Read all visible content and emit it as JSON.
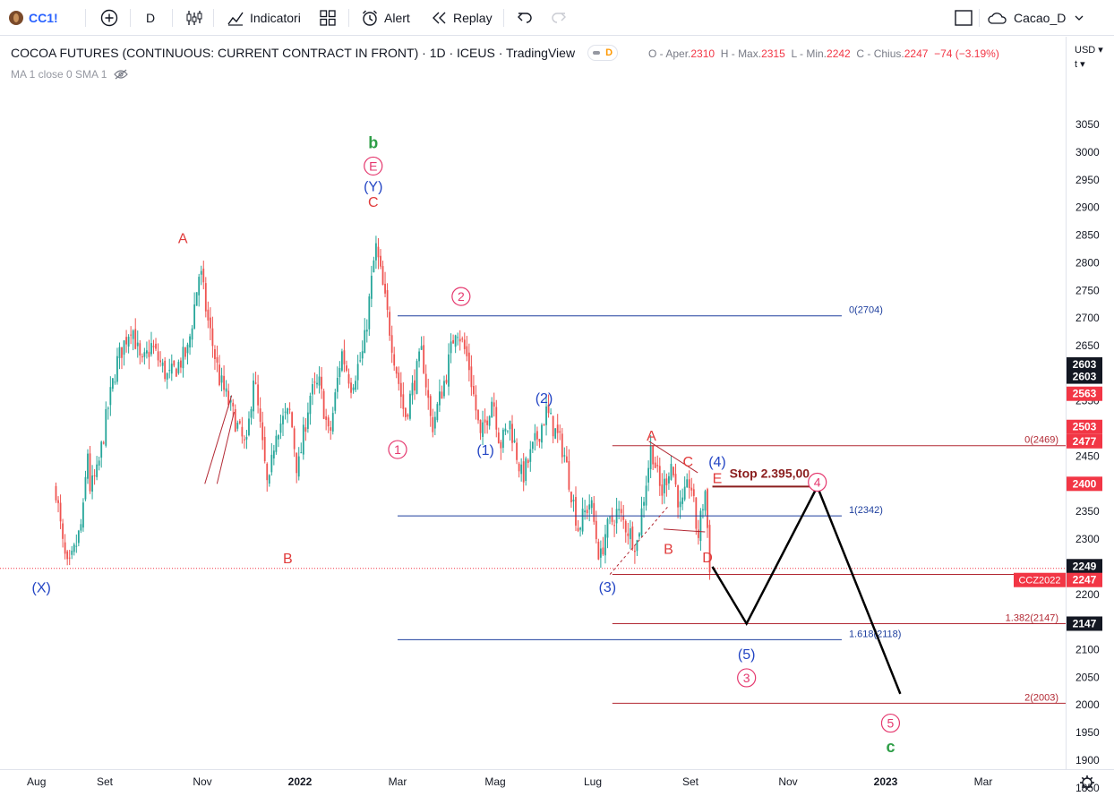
{
  "toolbar": {
    "symbol": "CC1!",
    "interval": "D",
    "indicators_label": "Indicatori",
    "alert_label": "Alert",
    "replay_label": "Replay",
    "layout_name": "Cacao_D"
  },
  "legend": {
    "title": "COCOA FUTURES (CONTINUOUS: CURRENT CONTRACT IN FRONT) · 1D · ICEUS · TradingView",
    "badge": "D",
    "ohlc": {
      "o_label": "O - Aper.",
      "o_val": "2310",
      "h_label": "H - Max.",
      "h_val": "2315",
      "l_label": "L - Min.",
      "l_val": "2242",
      "c_label": "C - Chius.",
      "c_val": "2247",
      "change": "−74 (−3.19%)"
    },
    "ma": "MA 1 close 0 SMA 1"
  },
  "price_axis": {
    "currency": "USD",
    "unit": "t",
    "ticks": [
      3050,
      3000,
      2950,
      2900,
      2850,
      2800,
      2750,
      2700,
      2650,
      2600,
      2550,
      2500,
      2450,
      2400,
      2350,
      2300,
      2250,
      2200,
      2150,
      2100,
      2050,
      2000,
      1950,
      1900,
      1850
    ],
    "labels": [
      {
        "text": "2603",
        "value": 2616,
        "bg": "#131722"
      },
      {
        "text": "2603",
        "value": 2594,
        "bg": "#131722"
      },
      {
        "text": "2563",
        "value": 2563,
        "bg": "#f23645"
      },
      {
        "text": "2503",
        "value": 2503,
        "bg": "#f23645"
      },
      {
        "text": "2477",
        "value": 2477,
        "bg": "#f23645"
      },
      {
        "text": "2400",
        "value": 2400,
        "bg": "#f23645"
      },
      {
        "text": "2249",
        "value": 2251,
        "bg": "#131722"
      },
      {
        "text": "2247",
        "value": 2226,
        "bg": "#f23645",
        "tag": "CCZ2022"
      },
      {
        "text": "2147",
        "value": 2147,
        "bg": "#131722"
      }
    ]
  },
  "time_axis": {
    "ticks": [
      {
        "label": "Aug",
        "t": -0.4,
        "bold": false
      },
      {
        "label": "Set",
        "t": 1.0,
        "bold": false
      },
      {
        "label": "Nov",
        "t": 3.0,
        "bold": false
      },
      {
        "label": "2022",
        "t": 5.0,
        "bold": true
      },
      {
        "label": "Mar",
        "t": 7.0,
        "bold": false
      },
      {
        "label": "Mag",
        "t": 9.0,
        "bold": false
      },
      {
        "label": "Lug",
        "t": 11.0,
        "bold": false
      },
      {
        "label": "Set",
        "t": 13.0,
        "bold": false
      },
      {
        "label": "Nov",
        "t": 15.0,
        "bold": false
      },
      {
        "label": "2023",
        "t": 17.0,
        "bold": true
      },
      {
        "label": "Mar",
        "t": 19.0,
        "bold": false
      }
    ]
  },
  "chart_data": {
    "type": "candlestick",
    "title": "COCOA FUTURES (CONTINUOUS: CURRENT CONTRACT IN FRONT)",
    "interval": "1D",
    "exchange": "ICEUS",
    "ylim": [
      1815,
      3115
    ],
    "x_unit": "months from Jul 2021",
    "price_path": [
      [
        0.0,
        2390
      ],
      [
        0.15,
        2280
      ],
      [
        0.25,
        2240
      ],
      [
        0.45,
        2300
      ],
      [
        0.55,
        2340
      ],
      [
        0.65,
        2460
      ],
      [
        0.7,
        2390
      ],
      [
        0.85,
        2420
      ],
      [
        1.05,
        2530
      ],
      [
        1.25,
        2620
      ],
      [
        1.55,
        2690
      ],
      [
        1.75,
        2610
      ],
      [
        1.95,
        2650
      ],
      [
        2.3,
        2590
      ],
      [
        2.7,
        2640
      ],
      [
        2.95,
        2790
      ],
      [
        3.1,
        2700
      ],
      [
        3.35,
        2590
      ],
      [
        3.65,
        2520
      ],
      [
        3.9,
        2460
      ],
      [
        4.05,
        2600
      ],
      [
        4.35,
        2380
      ],
      [
        4.5,
        2500
      ],
      [
        4.8,
        2530
      ],
      [
        4.95,
        2420
      ],
      [
        5.2,
        2560
      ],
      [
        5.4,
        2580
      ],
      [
        5.6,
        2480
      ],
      [
        5.85,
        2640
      ],
      [
        6.05,
        2580
      ],
      [
        6.3,
        2640
      ],
      [
        6.55,
        2830
      ],
      [
        6.65,
        2780
      ],
      [
        6.95,
        2620
      ],
      [
        7.15,
        2520
      ],
      [
        7.5,
        2640
      ],
      [
        7.7,
        2500
      ],
      [
        8.0,
        2600
      ],
      [
        8.2,
        2690
      ],
      [
        8.45,
        2620
      ],
      [
        8.7,
        2480
      ],
      [
        8.95,
        2560
      ],
      [
        9.1,
        2470
      ],
      [
        9.3,
        2510
      ],
      [
        9.55,
        2410
      ],
      [
        9.8,
        2470
      ],
      [
        10.05,
        2530
      ],
      [
        10.4,
        2460
      ],
      [
        10.7,
        2320
      ],
      [
        10.95,
        2370
      ],
      [
        11.15,
        2260
      ],
      [
        11.25,
        2310
      ],
      [
        11.5,
        2350
      ],
      [
        11.9,
        2290
      ],
      [
        12.2,
        2470
      ],
      [
        12.4,
        2380
      ],
      [
        12.6,
        2440
      ],
      [
        12.8,
        2350
      ],
      [
        13.0,
        2410
      ],
      [
        13.15,
        2300
      ],
      [
        13.3,
        2390
      ],
      [
        13.4,
        2247
      ]
    ],
    "horizontal_levels": [
      {
        "label": "0(2704)",
        "value": 2704,
        "color": "#1e3f9e"
      },
      {
        "label": "1(2342)",
        "value": 2342,
        "color": "#1e3f9e"
      },
      {
        "label": "1.618(2118)",
        "value": 2118,
        "color": "#1e3f9e"
      },
      {
        "label": "0(2469)",
        "value": 2469,
        "color": "#b22833"
      },
      {
        "label": "1.382(2147)",
        "value": 2147,
        "color": "#b22833"
      },
      {
        "label": "2(2003)",
        "value": 2003,
        "color": "#b22833"
      },
      {
        "label": "",
        "value": 2236,
        "color": "#b22833"
      }
    ],
    "last_price": 2247,
    "stop": {
      "label": "Stop 2.395,00",
      "value": 2395
    },
    "projection": [
      [
        13.45,
        2250
      ],
      [
        14.15,
        2147
      ],
      [
        15.6,
        2395
      ],
      [
        17.3,
        2020
      ]
    ],
    "wave_labels": [
      {
        "text": "b",
        "t": 6.5,
        "y": 3017,
        "color": "#2e9e47",
        "style": "plain"
      },
      {
        "text": "E",
        "t": 6.5,
        "y": 2975,
        "color": "#e5396f",
        "style": "circle"
      },
      {
        "text": "(Y)",
        "t": 6.5,
        "y": 2939,
        "color": "#2345c4",
        "style": "plain"
      },
      {
        "text": "C",
        "t": 6.5,
        "y": 2911,
        "color": "#e03b3b",
        "style": "plain"
      },
      {
        "text": "A",
        "t": 2.6,
        "y": 2845,
        "color": "#e03b3b",
        "style": "plain"
      },
      {
        "text": "B",
        "t": 4.75,
        "y": 2266,
        "color": "#e03b3b",
        "style": "plain"
      },
      {
        "text": "(X)",
        "t": -0.3,
        "y": 2213,
        "color": "#2345c4",
        "style": "plain"
      },
      {
        "text": "2",
        "t": 8.3,
        "y": 2739,
        "color": "#e5396f",
        "style": "circle"
      },
      {
        "text": "1",
        "t": 7.0,
        "y": 2462,
        "color": "#e5396f",
        "style": "circle"
      },
      {
        "text": "(2)",
        "t": 10.0,
        "y": 2556,
        "color": "#2345c4",
        "style": "plain"
      },
      {
        "text": "(1)",
        "t": 8.8,
        "y": 2462,
        "color": "#2345c4",
        "style": "plain"
      },
      {
        "text": "A",
        "t": 12.2,
        "y": 2488,
        "color": "#e03b3b",
        "style": "plain"
      },
      {
        "text": "C",
        "t": 12.95,
        "y": 2441,
        "color": "#e03b3b",
        "style": "plain"
      },
      {
        "text": "(4)",
        "t": 13.55,
        "y": 2441,
        "color": "#2345c4",
        "style": "plain"
      },
      {
        "text": "E",
        "t": 13.55,
        "y": 2411,
        "color": "#e03b3b",
        "style": "plain"
      },
      {
        "text": "B",
        "t": 12.55,
        "y": 2283,
        "color": "#e03b3b",
        "style": "plain"
      },
      {
        "text": "D",
        "t": 13.35,
        "y": 2268,
        "color": "#e03b3b",
        "style": "plain"
      },
      {
        "text": "(3)",
        "t": 11.3,
        "y": 2214,
        "color": "#2345c4",
        "style": "plain"
      },
      {
        "text": "4",
        "t": 15.6,
        "y": 2403,
        "color": "#e5396f",
        "style": "circle"
      },
      {
        "text": "(5)",
        "t": 14.15,
        "y": 2093,
        "color": "#2345c4",
        "style": "plain"
      },
      {
        "text": "3",
        "t": 14.15,
        "y": 2049,
        "color": "#e5396f",
        "style": "circle"
      },
      {
        "text": "5",
        "t": 17.1,
        "y": 1967,
        "color": "#e5396f",
        "style": "circle"
      },
      {
        "text": "c",
        "t": 17.1,
        "y": 1924,
        "color": "#2e9e47",
        "style": "plain"
      }
    ]
  }
}
